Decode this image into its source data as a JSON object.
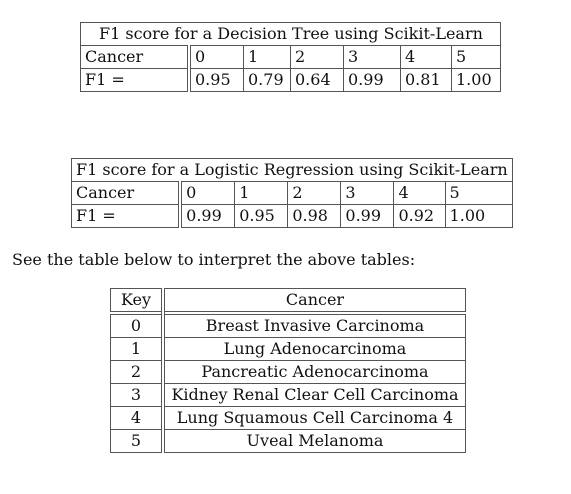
{
  "dt_table": {
    "title": "F1 score for a Decision Tree using Scikit-Learn",
    "header": [
      "Cancer",
      "0",
      "1",
      "2",
      "3",
      "4",
      "5"
    ],
    "row": [
      "F1 =",
      "0.95",
      "0.79",
      "0.64",
      "0.99",
      "0.81",
      "1.00"
    ]
  },
  "lr_table": {
    "title": "F1 score for a Logistic Regression using Scikit-Learn",
    "header": [
      "Cancer",
      "0",
      "1",
      "2",
      "3",
      "4",
      "5"
    ],
    "row": [
      "F1 =",
      "0.99",
      "0.95",
      "0.98",
      "0.99",
      "0.92",
      "1.00"
    ]
  },
  "interpret_text": "See the table below to interpret the above tables:",
  "key_table": {
    "headers": [
      "Key",
      "Cancer"
    ],
    "rows": [
      [
        "0",
        "Breast Invasive Carcinoma"
      ],
      [
        "1",
        "Lung Adenocarcinoma"
      ],
      [
        "2",
        "Pancreatic Adenocarcinoma"
      ],
      [
        "3",
        "Kidney Renal Clear Cell Carcinoma"
      ],
      [
        "4",
        "Lung Squamous Cell Carcinoma 4"
      ],
      [
        "5",
        "Uveal Melanoma"
      ]
    ]
  }
}
